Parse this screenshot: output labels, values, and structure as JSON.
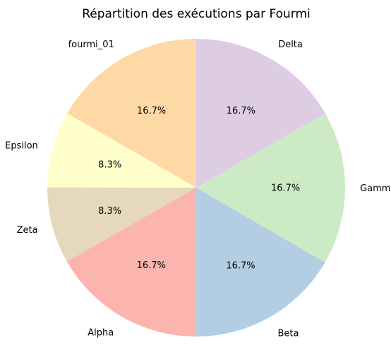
{
  "chart_data": {
    "type": "pie",
    "title": "Répartition des exécutions par Fourmi",
    "start_angle_deg": 90,
    "direction": "counterclockwise",
    "slices": [
      {
        "label": "fourmi_01",
        "value": 16.7,
        "pct_label": "16.7%",
        "color": "#fed9a6"
      },
      {
        "label": "Epsilon",
        "value": 8.3,
        "pct_label": "8.3%",
        "color": "#ffffcc"
      },
      {
        "label": "Zeta",
        "value": 8.3,
        "pct_label": "8.3%",
        "color": "#e5d8bd"
      },
      {
        "label": "Alpha",
        "value": 16.7,
        "pct_label": "16.7%",
        "color": "#fbb4ae"
      },
      {
        "label": "Beta",
        "value": 16.7,
        "pct_label": "16.7%",
        "color": "#b3cde3"
      },
      {
        "label": "Gamma",
        "value": 16.7,
        "pct_label": "16.7%",
        "color": "#ccebc5"
      },
      {
        "label": "Delta",
        "value": 16.7,
        "pct_label": "16.7%",
        "color": "#decbe4"
      }
    ]
  }
}
